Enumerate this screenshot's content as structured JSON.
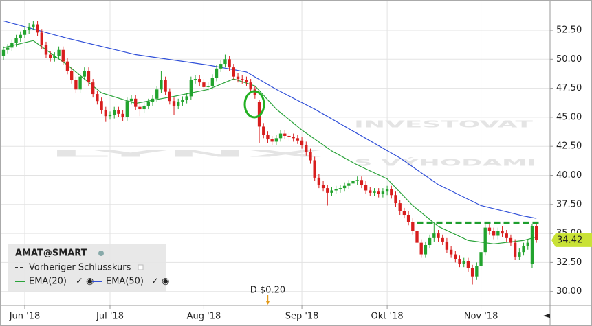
{
  "chart_data": {
    "type": "candlestick",
    "instrument": "AMAT@SMART",
    "prev_close_label": "Vorheriger Schlusskurs",
    "watermark": [
      "LYNX",
      "INVESTOVAT",
      "S VÝHODAMI"
    ],
    "up_color": "#22a32e",
    "down_color": "#d81e1e",
    "xlim": [
      -0.8,
      128.2
    ],
    "ylim": [
      28.8,
      55.1
    ],
    "xticks": [
      {
        "value": 5,
        "label": "Jun '18"
      },
      {
        "value": 25,
        "label": "Jul '18"
      },
      {
        "value": 47,
        "label": "Aug '18"
      },
      {
        "value": 70,
        "label": "Sep '18"
      },
      {
        "value": 90,
        "label": "Okt '18"
      },
      {
        "value": 112,
        "label": "Nov '18"
      }
    ],
    "yticks": [
      {
        "value": 30,
        "label": "30.00"
      },
      {
        "value": 32.5,
        "label": "32.50"
      },
      {
        "value": 35,
        "label": "35.00"
      },
      {
        "value": 37.5,
        "label": "37.50"
      },
      {
        "value": 40,
        "label": "40.00"
      },
      {
        "value": 42.5,
        "label": "42.50"
      },
      {
        "value": 45,
        "label": "45.00"
      },
      {
        "value": 47.5,
        "label": "47.50"
      },
      {
        "value": 50,
        "label": "50.00"
      },
      {
        "value": 52.5,
        "label": "52.50"
      }
    ],
    "grid": true,
    "candles": [
      [
        50.3,
        51.1,
        49.9,
        50.8
      ],
      [
        50.8,
        51.3,
        50.5,
        51.0
      ],
      [
        51.0,
        51.7,
        50.7,
        51.4
      ],
      [
        51.4,
        52.1,
        51.1,
        51.8
      ],
      [
        51.8,
        52.4,
        51.5,
        52.1
      ],
      [
        52.1,
        52.8,
        51.8,
        52.5
      ],
      [
        52.5,
        53.1,
        52.2,
        52.8
      ],
      [
        52.8,
        53.3,
        52.5,
        53.0
      ],
      [
        53.0,
        53.3,
        52.0,
        52.3
      ],
      [
        52.3,
        52.6,
        50.9,
        51.2
      ],
      [
        51.2,
        51.5,
        50.1,
        50.4
      ],
      [
        50.4,
        50.7,
        49.8,
        50.1
      ],
      [
        50.1,
        50.6,
        49.8,
        50.3
      ],
      [
        50.3,
        51.1,
        50.0,
        50.8
      ],
      [
        50.8,
        51.1,
        49.5,
        49.8
      ],
      [
        49.8,
        50.1,
        48.7,
        49.0
      ],
      [
        49.0,
        49.3,
        47.9,
        48.2
      ],
      [
        48.2,
        48.5,
        47.1,
        47.4
      ],
      [
        47.4,
        48.8,
        47.1,
        48.5
      ],
      [
        48.5,
        49.3,
        48.2,
        49.0
      ],
      [
        49.0,
        49.3,
        47.7,
        48.0
      ],
      [
        48.0,
        48.3,
        46.7,
        47.0
      ],
      [
        47.0,
        47.3,
        46.1,
        46.4
      ],
      [
        46.4,
        46.7,
        45.3,
        45.6
      ],
      [
        45.6,
        45.9,
        44.6,
        45.1
      ],
      [
        45.1,
        45.5,
        44.8,
        45.2
      ],
      [
        45.2,
        45.9,
        44.9,
        45.6
      ],
      [
        45.6,
        45.9,
        45.0,
        45.3
      ],
      [
        45.3,
        45.6,
        44.7,
        45.0
      ],
      [
        45.0,
        46.7,
        44.7,
        46.4
      ],
      [
        46.4,
        46.9,
        46.1,
        46.6
      ],
      [
        46.6,
        46.9,
        45.6,
        45.9
      ],
      [
        45.9,
        46.2,
        45.1,
        45.7
      ],
      [
        45.7,
        46.3,
        45.4,
        46.0
      ],
      [
        46.0,
        46.6,
        45.7,
        46.3
      ],
      [
        46.3,
        46.9,
        46.0,
        46.6
      ],
      [
        46.6,
        47.7,
        46.3,
        47.4
      ],
      [
        47.4,
        49.0,
        47.1,
        48.2
      ],
      [
        48.2,
        48.5,
        46.9,
        47.2
      ],
      [
        47.2,
        47.5,
        46.1,
        46.4
      ],
      [
        46.4,
        46.7,
        45.2,
        46.0
      ],
      [
        46.0,
        46.6,
        45.7,
        46.3
      ],
      [
        46.3,
        46.8,
        46.0,
        46.5
      ],
      [
        46.5,
        47.1,
        46.2,
        46.8
      ],
      [
        46.8,
        48.5,
        46.5,
        48.2
      ],
      [
        48.2,
        48.6,
        47.9,
        48.3
      ],
      [
        48.3,
        48.6,
        47.7,
        48.0
      ],
      [
        48.0,
        48.3,
        47.2,
        47.6
      ],
      [
        47.6,
        48.0,
        47.3,
        47.7
      ],
      [
        47.7,
        48.7,
        47.4,
        48.4
      ],
      [
        48.4,
        49.5,
        48.1,
        49.2
      ],
      [
        49.2,
        49.9,
        48.9,
        49.6
      ],
      [
        49.6,
        50.4,
        49.3,
        50.0
      ],
      [
        50.0,
        50.3,
        49.0,
        49.3
      ],
      [
        49.3,
        49.6,
        48.2,
        48.5
      ],
      [
        48.5,
        48.8,
        48.0,
        48.3
      ],
      [
        48.3,
        48.6,
        47.9,
        48.2
      ],
      [
        48.2,
        48.5,
        47.7,
        48.0
      ],
      [
        48.0,
        48.3,
        47.1,
        47.4
      ],
      [
        47.4,
        47.7,
        46.6,
        46.9
      ],
      [
        46.3,
        46.5,
        42.8,
        44.2
      ],
      [
        44.2,
        44.5,
        43.2,
        43.5
      ],
      [
        43.5,
        43.8,
        42.8,
        43.1
      ],
      [
        43.1,
        43.4,
        42.6,
        42.9
      ],
      [
        42.9,
        43.5,
        42.6,
        43.2
      ],
      [
        43.2,
        43.9,
        42.9,
        43.6
      ],
      [
        43.6,
        43.9,
        43.1,
        43.4
      ],
      [
        43.4,
        43.7,
        43.0,
        43.3
      ],
      [
        43.3,
        43.6,
        42.9,
        43.2
      ],
      [
        43.2,
        43.5,
        42.7,
        43.0
      ],
      [
        43.0,
        43.3,
        42.3,
        42.6
      ],
      [
        42.6,
        42.9,
        41.7,
        42.0
      ],
      [
        42.0,
        42.3,
        41.0,
        41.3
      ],
      [
        41.3,
        41.6,
        39.5,
        39.8
      ],
      [
        39.8,
        40.1,
        38.9,
        39.2
      ],
      [
        39.2,
        39.5,
        38.6,
        38.9
      ],
      [
        38.9,
        39.2,
        37.4,
        38.5
      ],
      [
        38.5,
        39.0,
        38.2,
        38.7
      ],
      [
        38.7,
        39.1,
        38.4,
        38.8
      ],
      [
        38.8,
        39.2,
        38.5,
        38.9
      ],
      [
        38.9,
        39.4,
        38.6,
        39.1
      ],
      [
        39.1,
        39.6,
        38.8,
        39.3
      ],
      [
        39.3,
        39.8,
        39.0,
        39.5
      ],
      [
        39.5,
        39.9,
        39.2,
        39.6
      ],
      [
        39.6,
        39.9,
        38.9,
        39.2
      ],
      [
        39.2,
        39.5,
        38.4,
        38.7
      ],
      [
        38.7,
        39.0,
        38.2,
        38.5
      ],
      [
        38.5,
        38.9,
        38.2,
        38.6
      ],
      [
        38.6,
        38.9,
        38.1,
        38.4
      ],
      [
        38.4,
        38.9,
        38.1,
        38.6
      ],
      [
        38.6,
        39.1,
        38.3,
        38.8
      ],
      [
        38.8,
        39.1,
        38.0,
        38.3
      ],
      [
        38.3,
        38.6,
        37.3,
        37.6
      ],
      [
        37.6,
        37.9,
        36.6,
        36.9
      ],
      [
        36.9,
        37.2,
        36.3,
        36.6
      ],
      [
        36.6,
        36.9,
        35.7,
        36.0
      ],
      [
        36.0,
        36.3,
        34.9,
        35.2
      ],
      [
        35.2,
        35.5,
        33.9,
        34.2
      ],
      [
        34.2,
        34.5,
        32.9,
        33.2
      ],
      [
        33.2,
        34.3,
        32.9,
        34.0
      ],
      [
        34.0,
        34.9,
        33.7,
        34.6
      ],
      [
        34.6,
        35.9,
        34.3,
        35.0
      ],
      [
        35.0,
        35.3,
        34.3,
        34.6
      ],
      [
        34.6,
        34.9,
        34.0,
        34.3
      ],
      [
        34.3,
        34.6,
        33.3,
        33.6
      ],
      [
        33.6,
        33.9,
        32.9,
        33.2
      ],
      [
        33.2,
        33.5,
        32.5,
        32.8
      ],
      [
        32.8,
        33.1,
        32.1,
        32.4
      ],
      [
        32.4,
        32.9,
        32.1,
        32.6
      ],
      [
        32.6,
        32.9,
        31.7,
        32.0
      ],
      [
        32.0,
        32.3,
        30.6,
        31.3
      ],
      [
        31.3,
        32.5,
        31.0,
        32.2
      ],
      [
        32.2,
        33.7,
        31.9,
        33.4
      ],
      [
        33.4,
        35.9,
        33.1,
        35.5
      ],
      [
        35.5,
        35.8,
        34.9,
        35.2
      ],
      [
        35.2,
        35.5,
        34.5,
        34.8
      ],
      [
        34.8,
        35.5,
        34.5,
        35.2
      ],
      [
        35.2,
        35.6,
        34.7,
        35.0
      ],
      [
        35.0,
        35.3,
        34.3,
        34.6
      ],
      [
        34.6,
        34.9,
        33.9,
        34.2
      ],
      [
        34.2,
        34.5,
        32.7,
        33.0
      ],
      [
        33.0,
        33.7,
        32.7,
        33.4
      ],
      [
        33.4,
        34.2,
        33.1,
        33.9
      ],
      [
        33.9,
        34.5,
        33.6,
        34.2
      ],
      [
        32.4,
        35.8,
        32.0,
        35.6
      ],
      [
        35.6,
        35.9,
        34.2,
        34.42
      ]
    ],
    "series": [
      {
        "name": "EMA(20)",
        "color": "#2aa33a",
        "x": [
          0,
          7,
          15,
          23,
          31,
          40,
          48,
          54,
          59,
          64,
          70,
          77,
          83,
          90,
          96,
          102,
          109,
          115,
          122,
          125
        ],
        "values": [
          51.0,
          51.6,
          49.5,
          47.1,
          46.2,
          46.8,
          47.4,
          48.3,
          47.7,
          45.7,
          43.9,
          42.1,
          40.9,
          39.7,
          37.4,
          35.6,
          34.4,
          34.1,
          34.4,
          34.7
        ]
      },
      {
        "name": "EMA(50)",
        "color": "#2f4fd8",
        "x": [
          0,
          15,
          31,
          48,
          57,
          64,
          73,
          83,
          93,
          102,
          112,
          122,
          125
        ],
        "values": [
          53.3,
          51.8,
          50.4,
          49.5,
          48.9,
          47.4,
          45.7,
          43.6,
          41.5,
          39.2,
          37.4,
          36.5,
          36.3
        ]
      }
    ],
    "level_line": {
      "y": 35.9,
      "x": [
        97,
        126
      ],
      "color": "#1e9e2e"
    },
    "dividend": {
      "label": "D $0.20",
      "x": 62
    }
  }
}
